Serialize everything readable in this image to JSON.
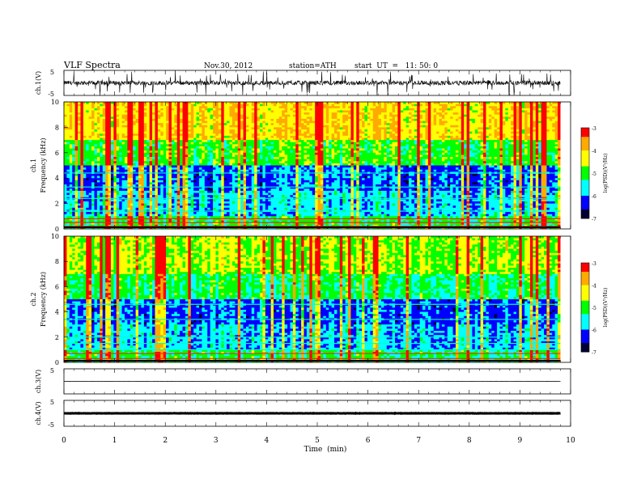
{
  "header": {
    "title": "VLF Spectra",
    "date": "Nov.30, 2012",
    "station": "station=ATH",
    "start": "start  UT  =   11: 50: 0"
  },
  "colorbar": {
    "label": "log(PSD)(V²/Hz)",
    "ticks": [
      "-3",
      "-4",
      "-5",
      "-6",
      "-7"
    ],
    "colors": [
      "#ff0000",
      "#ffaa00",
      "#ffff00",
      "#00ff00",
      "#00ffff",
      "#0000ff",
      "#000033"
    ]
  },
  "chart_data": [
    {
      "type": "line",
      "panel": "ch1-waveform",
      "ylabel": "ch.1(V)",
      "yticks": [
        "5",
        "-5"
      ],
      "ylim": [
        -5,
        5
      ],
      "xlim": [
        0,
        10
      ],
      "note": "dense noisy waveform with impulsive spikes"
    },
    {
      "type": "heatmap",
      "panel": "ch1-spectrogram",
      "ylabel_line1": "ch.1",
      "ylabel_line2": "Frequency  (kHz)",
      "yticks": [
        "10",
        "8",
        "6",
        "4",
        "2",
        "0"
      ],
      "ylim": [
        0,
        10
      ],
      "xlim": [
        0,
        10
      ],
      "value_range": [
        -7,
        -3
      ],
      "bands_khz": [
        0.2,
        0.5,
        0.8,
        1.4,
        2.4,
        3.3,
        4.4
      ]
    },
    {
      "type": "heatmap",
      "panel": "ch2-spectrogram",
      "ylabel_line1": "ch.2",
      "ylabel_line2": "Frequency  (kHz)",
      "yticks": [
        "10",
        "8",
        "6",
        "4",
        "2",
        "0"
      ],
      "ylim": [
        0,
        10
      ],
      "xlim": [
        0,
        10
      ],
      "value_range": [
        -7,
        -3
      ],
      "bands_khz": [
        0.3,
        0.7,
        1.0,
        1.5,
        2.0,
        3.4,
        4.6
      ]
    },
    {
      "type": "line",
      "panel": "ch3-waveform",
      "ylabel": "ch.3(V)",
      "yticks": [
        "5"
      ],
      "ylim": [
        -5,
        5
      ],
      "xlim": [
        0,
        10
      ],
      "note": "flat line near zero"
    },
    {
      "type": "line",
      "panel": "ch4-waveform",
      "ylabel": "ch.4(V)",
      "yticks": [
        "5",
        "-5"
      ],
      "ylim": [
        -5,
        5
      ],
      "xlim": [
        0,
        10
      ],
      "note": "thick flat line near zero"
    }
  ],
  "xaxis": {
    "label": "Time  (min)",
    "ticks": [
      "0",
      "1",
      "2",
      "3",
      "4",
      "5",
      "6",
      "7",
      "8",
      "9",
      "10"
    ],
    "data_end_min": 9.8
  }
}
